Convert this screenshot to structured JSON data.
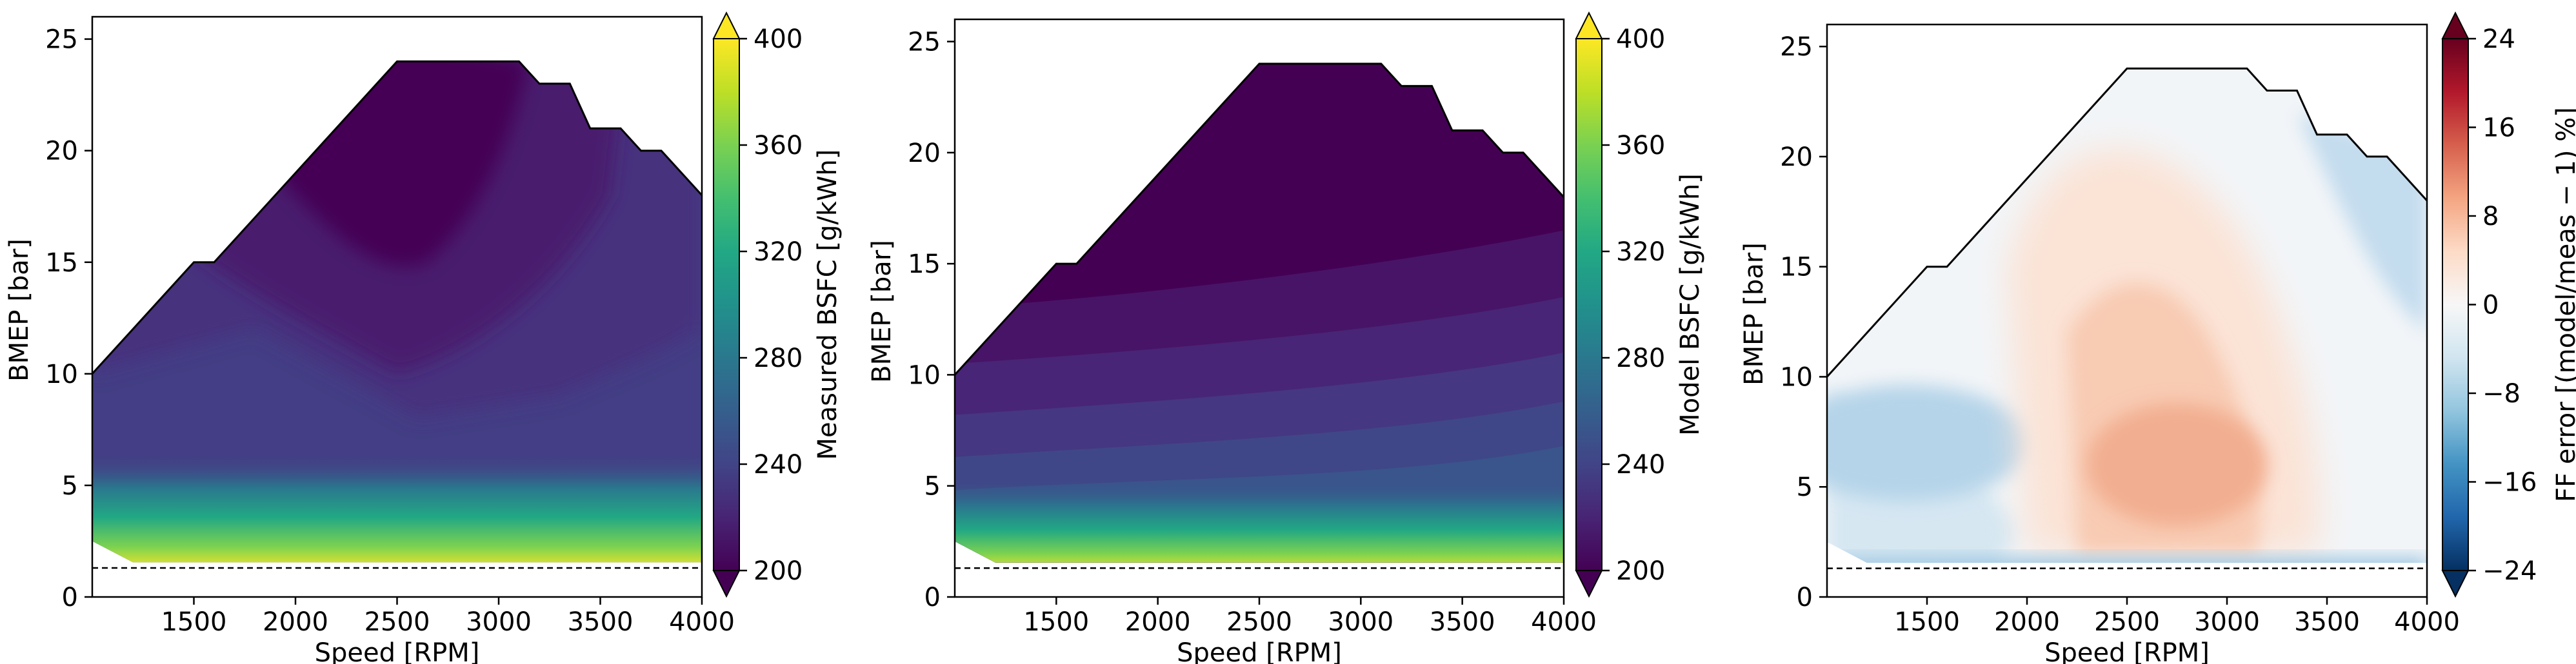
{
  "chart_data": [
    {
      "type": "contour",
      "xlabel": "Speed [RPM]",
      "ylabel": "BMEP [bar]",
      "xlim": [
        1000,
        4000
      ],
      "ylim": [
        0,
        26
      ],
      "xticks": [
        1500,
        2000,
        2500,
        3000,
        3500,
        4000
      ],
      "yticks": [
        0,
        5,
        10,
        15,
        20,
        25
      ],
      "colorbar": {
        "label": "Measured BSFC [g/kWh]",
        "colormap": "viridis",
        "ticks": [
          200,
          240,
          280,
          320,
          360,
          400
        ],
        "range": [
          200,
          400
        ],
        "extend": "both"
      },
      "boundary_line": {
        "speed": [
          1000,
          1500,
          1600,
          2500,
          3100,
          3200,
          3350,
          3450,
          3600,
          3700,
          3800,
          4000
        ],
        "bmep": [
          10,
          15,
          15,
          24,
          24,
          23,
          23,
          21,
          21,
          20,
          20,
          18
        ]
      },
      "dashed_line_bmep": 1.3,
      "regions": [
        {
          "bsfc": 205,
          "label": "lowest BSFC island, mid speed / high load"
        },
        {
          "bsfc": 215
        },
        {
          "bsfc": 225
        },
        {
          "bsfc": 240
        },
        {
          "bsfc": 400,
          "label": "low load near BMEP 1.3 bar"
        }
      ]
    },
    {
      "type": "contour",
      "xlabel": "Speed [RPM]",
      "ylabel": "BMEP [bar]",
      "xlim": [
        1000,
        4000
      ],
      "ylim": [
        0,
        26
      ],
      "xticks": [
        1500,
        2000,
        2500,
        3000,
        3500,
        4000
      ],
      "yticks": [
        0,
        5,
        10,
        15,
        20,
        25
      ],
      "colorbar": {
        "label": "Model BSFC [g/kWh]",
        "colormap": "viridis",
        "ticks": [
          200,
          240,
          280,
          320,
          360,
          400
        ],
        "range": [
          200,
          400
        ],
        "extend": "both"
      },
      "boundary_line": {
        "speed": [
          1000,
          1500,
          1600,
          2500,
          3100,
          3200,
          3350,
          3450,
          3600,
          3700,
          3800,
          4000
        ],
        "bmep": [
          10,
          15,
          15,
          24,
          24,
          23,
          23,
          21,
          21,
          20,
          20,
          18
        ]
      },
      "dashed_line_bmep": 1.3
    },
    {
      "type": "contour",
      "xlabel": "Speed [RPM]",
      "ylabel": "BMEP [bar]",
      "xlim": [
        1000,
        4000
      ],
      "ylim": [
        0,
        26
      ],
      "xticks": [
        1500,
        2000,
        2500,
        3000,
        3500,
        4000
      ],
      "yticks": [
        0,
        5,
        10,
        15,
        20,
        25
      ],
      "colorbar": {
        "label": "FF error  [(model/meas − 1) %]",
        "colormap": "RdBu_r",
        "ticks": [
          -24,
          -16,
          -8,
          0,
          8,
          16,
          24
        ],
        "tick_labels": [
          "−24",
          "−16",
          "−8",
          "0",
          "8",
          "16",
          "24"
        ],
        "range": [
          -24,
          24
        ],
        "extend": "both"
      },
      "boundary_line": {
        "speed": [
          1000,
          1500,
          1600,
          2500,
          3100,
          3200,
          3350,
          3450,
          3600,
          3700,
          3800,
          4000
        ],
        "bmep": [
          10,
          15,
          15,
          24,
          24,
          23,
          23,
          21,
          21,
          20,
          20,
          18
        ]
      },
      "dashed_line_bmep": 1.3
    }
  ],
  "colors": {
    "viridis": [
      "#440154",
      "#482475",
      "#414487",
      "#355f8d",
      "#2a788e",
      "#21918c",
      "#22a884",
      "#44bf70",
      "#7ad151",
      "#bddf26",
      "#fde725"
    ],
    "rdbu": [
      "#053061",
      "#2166ac",
      "#4393c3",
      "#92c5de",
      "#d1e5f0",
      "#f7f7f7",
      "#fddbc7",
      "#f4a582",
      "#d6604d",
      "#b2182b",
      "#67001f"
    ]
  }
}
